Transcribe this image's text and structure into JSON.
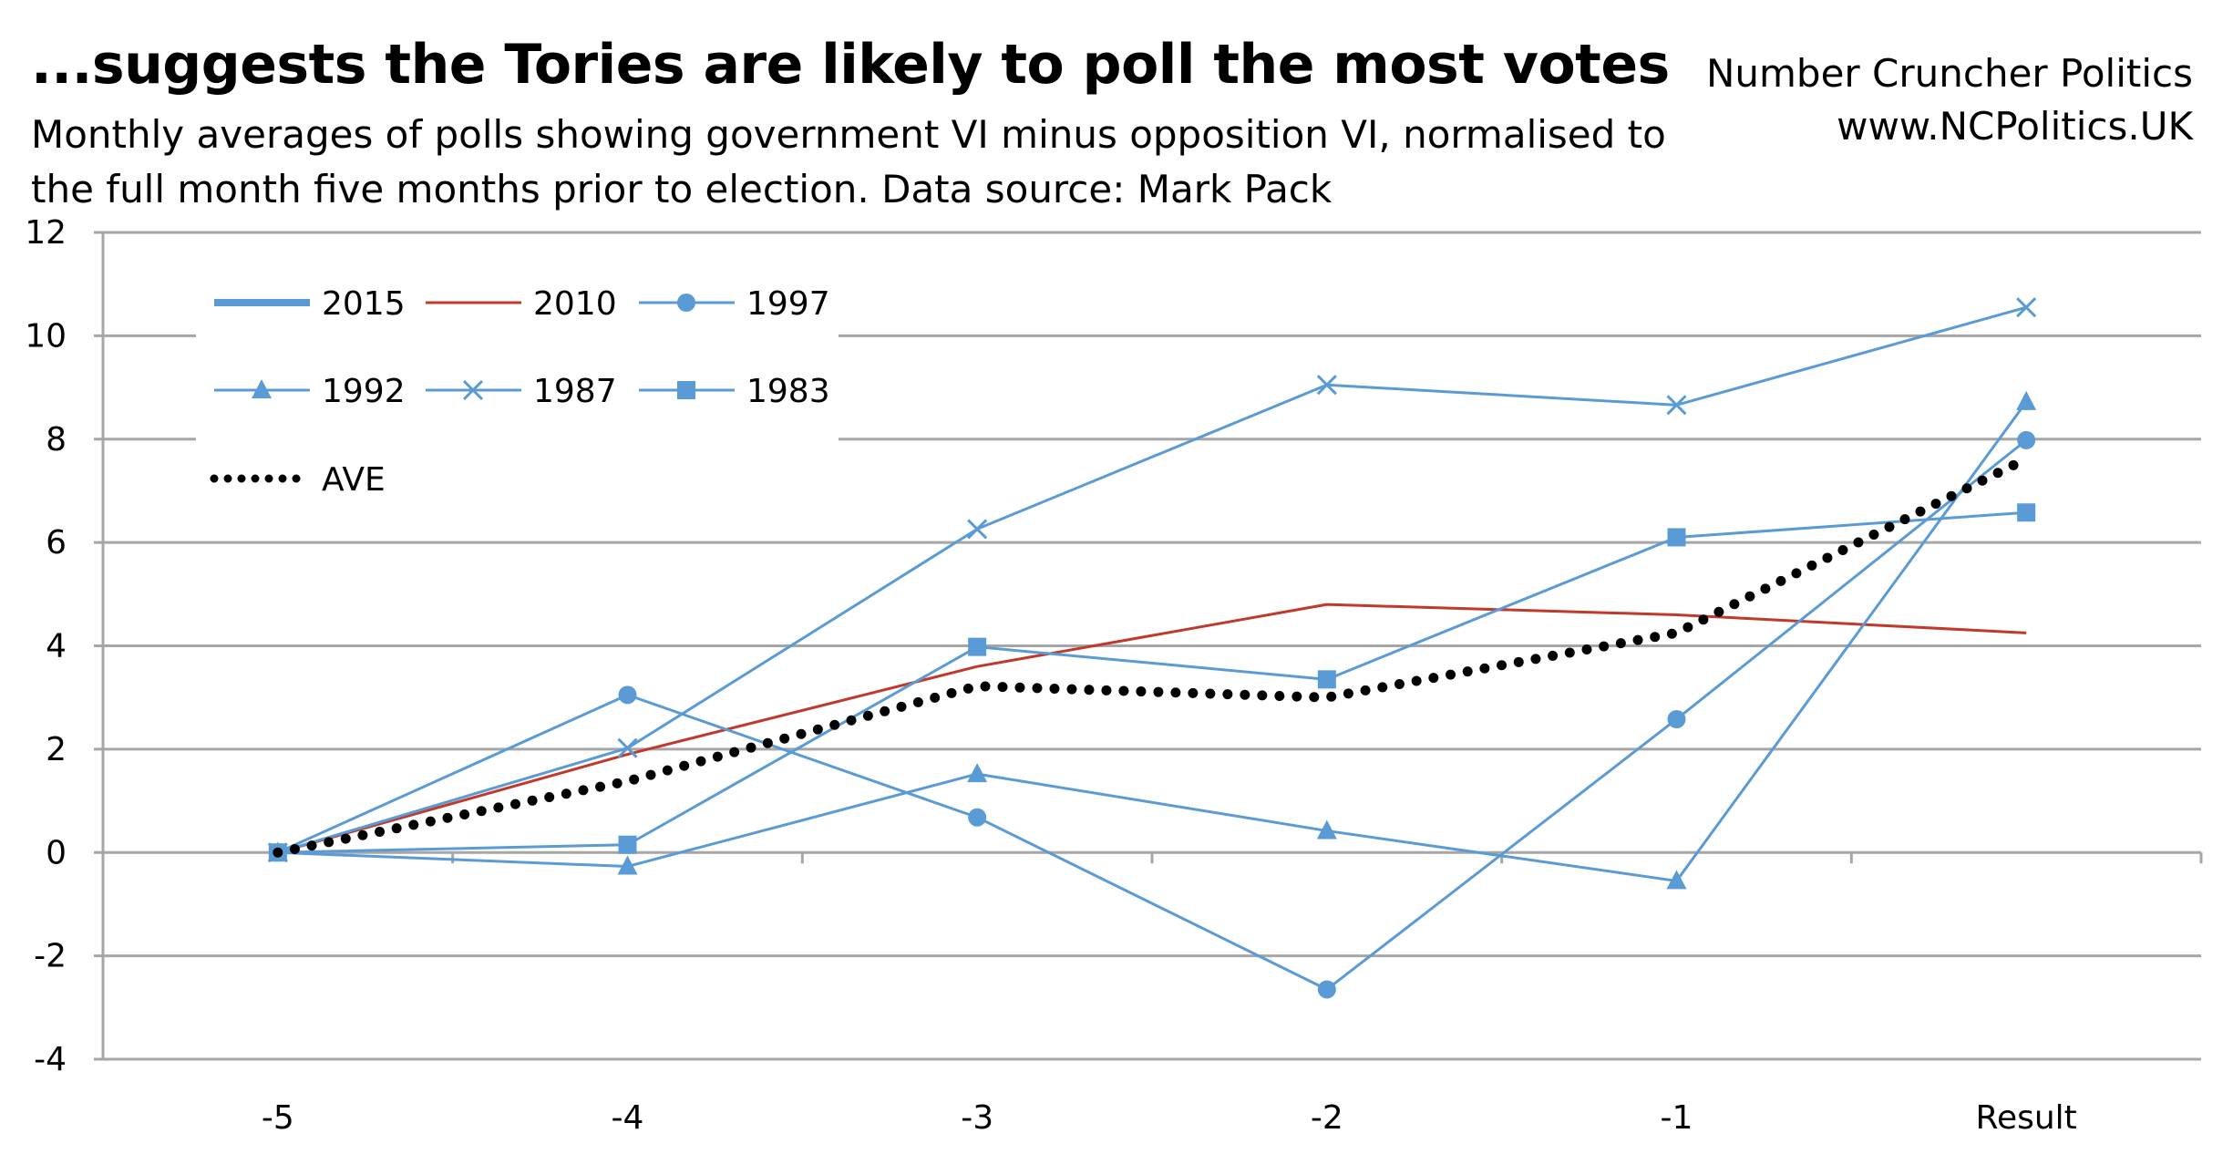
{
  "header": {
    "title": "...suggests the Tories are likely to poll the most votes",
    "subtitle": "Monthly averages of polls showing government VI minus opposition VI, normalised to the full month five months prior to election. Data source: Mark Pack",
    "brand_line1": "Number Cruncher Politics",
    "brand_line2": "www.NCPolitics.UK"
  },
  "colors": {
    "blue": "#5B9BD5",
    "red": "#C0392B",
    "ave": "#000000",
    "grid": "#A6A6A6"
  },
  "chart_data": {
    "type": "line",
    "title": "...suggests the Tories are likely to poll the most votes",
    "xlabel": "",
    "ylabel": "",
    "categories": [
      "-5",
      "-4",
      "-3",
      "-2",
      "-1",
      "Result"
    ],
    "ylim": [
      -4,
      12
    ],
    "yticks": [
      -4,
      -2,
      0,
      2,
      4,
      6,
      8,
      10,
      12
    ],
    "grid": true,
    "legend_position": "top-left",
    "series": [
      {
        "name": "2015",
        "color": "#5B9BD5",
        "style": "thick",
        "marker": "none",
        "values": [
          null,
          null,
          null,
          null,
          null,
          null
        ]
      },
      {
        "name": "2010",
        "color": "#C0392B",
        "style": "solid",
        "marker": "none",
        "values": [
          0,
          1.9,
          3.6,
          4.8,
          4.6,
          4.25
        ]
      },
      {
        "name": "1997",
        "color": "#5B9BD5",
        "style": "solid",
        "marker": "circle",
        "values": [
          0,
          3.05,
          0.68,
          -2.65,
          2.58,
          7.98
        ]
      },
      {
        "name": "1992",
        "color": "#5B9BD5",
        "style": "solid",
        "marker": "triangle",
        "values": [
          0,
          -0.27,
          1.52,
          0.42,
          -0.55,
          8.72
        ]
      },
      {
        "name": "1987",
        "color": "#5B9BD5",
        "style": "solid",
        "marker": "x",
        "values": [
          0,
          2.02,
          6.26,
          9.05,
          8.66,
          10.55
        ]
      },
      {
        "name": "1983",
        "color": "#5B9BD5",
        "style": "solid",
        "marker": "square",
        "values": [
          0,
          0.15,
          3.98,
          3.35,
          6.1,
          6.58
        ]
      },
      {
        "name": "AVE",
        "color": "#000000",
        "style": "dotted",
        "marker": "none",
        "values": [
          0,
          1.38,
          3.22,
          3.0,
          4.25,
          7.62
        ]
      }
    ]
  }
}
